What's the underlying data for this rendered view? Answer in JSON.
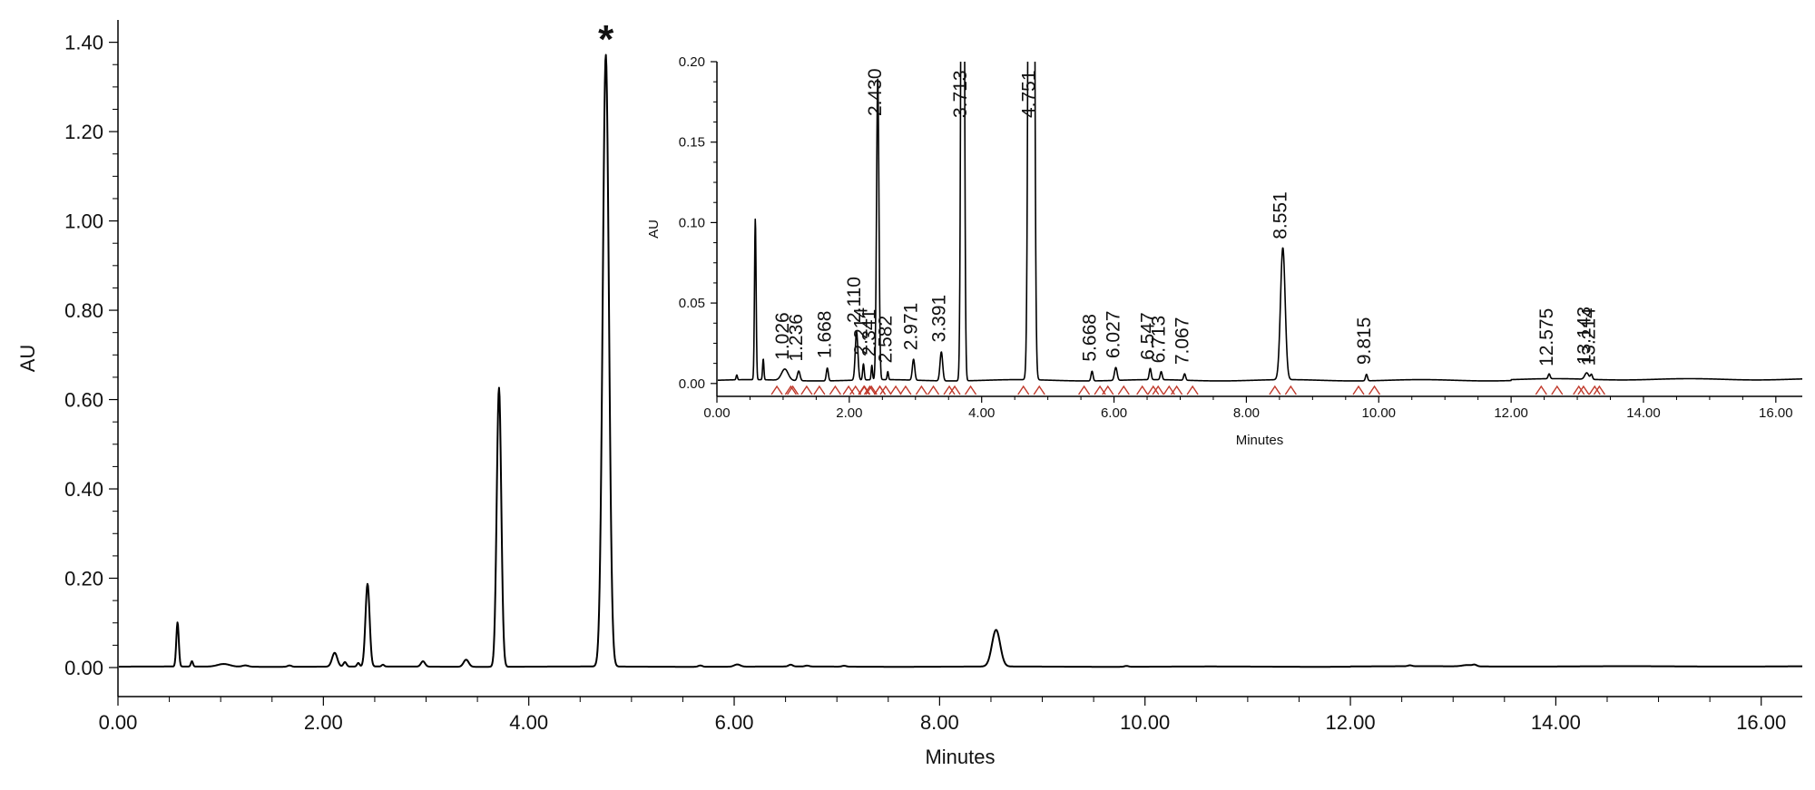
{
  "chart_data": [
    {
      "type": "line",
      "xlabel": "Minutes",
      "ylabel": "AU",
      "xlim": [
        0.0,
        16.4
      ],
      "ylim": [
        -0.065,
        1.45
      ],
      "x_ticks": [
        "0.00",
        "2.00",
        "4.00",
        "6.00",
        "8.00",
        "10.00",
        "12.00",
        "14.00",
        "16.00"
      ],
      "y_ticks": [
        "0.00",
        "0.20",
        "0.40",
        "0.60",
        "0.80",
        "1.00",
        "1.20",
        "1.40"
      ],
      "annotation": "*",
      "annotation_x": 4.751,
      "baseline": 0.002,
      "peaks": [
        {
          "t": 0.58,
          "h": 0.099,
          "w": 0.012
        },
        {
          "t": 0.72,
          "h": 0.012,
          "w": 0.01
        },
        {
          "t": 1.03,
          "h": 0.006,
          "w": 0.06
        },
        {
          "t": 1.24,
          "h": 0.003,
          "w": 0.03
        },
        {
          "t": 1.67,
          "h": 0.003,
          "w": 0.02
        },
        {
          "t": 2.11,
          "h": 0.031,
          "w": 0.025
        },
        {
          "t": 2.21,
          "h": 0.01,
          "w": 0.015
        },
        {
          "t": 2.34,
          "h": 0.008,
          "w": 0.012
        },
        {
          "t": 2.43,
          "h": 0.185,
          "w": 0.02
        },
        {
          "t": 2.58,
          "h": 0.004,
          "w": 0.012
        },
        {
          "t": 2.97,
          "h": 0.012,
          "w": 0.02
        },
        {
          "t": 3.39,
          "h": 0.016,
          "w": 0.025
        },
        {
          "t": 3.71,
          "h": 0.625,
          "w": 0.022
        },
        {
          "t": 4.75,
          "h": 1.37,
          "w": 0.03
        },
        {
          "t": 5.67,
          "h": 0.003,
          "w": 0.02
        },
        {
          "t": 6.03,
          "h": 0.005,
          "w": 0.03
        },
        {
          "t": 6.55,
          "h": 0.004,
          "w": 0.02
        },
        {
          "t": 6.71,
          "h": 0.002,
          "w": 0.02
        },
        {
          "t": 7.07,
          "h": 0.002,
          "w": 0.02
        },
        {
          "t": 8.55,
          "h": 0.082,
          "w": 0.04
        },
        {
          "t": 9.82,
          "h": 0.002,
          "w": 0.02
        },
        {
          "t": 12.58,
          "h": 0.002,
          "w": 0.02
        },
        {
          "t": 13.14,
          "h": 0.003,
          "w": 0.05
        },
        {
          "t": 13.21,
          "h": 0.003,
          "w": 0.02
        }
      ]
    },
    {
      "type": "line",
      "xlabel": "Minutes",
      "ylabel": "AU",
      "xlim": [
        0.0,
        16.4
      ],
      "ylim": [
        -0.008,
        0.2
      ],
      "x_ticks": [
        "0.00",
        "2.00",
        "4.00",
        "6.00",
        "8.00",
        "10.00",
        "12.00",
        "14.00",
        "16.00"
      ],
      "y_ticks": [
        "0.00",
        "0.05",
        "0.10",
        "0.15",
        "0.20"
      ],
      "baseline": 0.002,
      "peak_labels": [
        {
          "label": "1.026",
          "t": 1.026
        },
        {
          "label": "1.236",
          "t": 1.236
        },
        {
          "label": "1.668",
          "t": 1.668
        },
        {
          "label": "2.110",
          "t": 2.11
        },
        {
          "label": "2.214",
          "t": 2.214
        },
        {
          "label": "2.341",
          "t": 2.341
        },
        {
          "label": "2.430",
          "t": 2.43
        },
        {
          "label": "2.582",
          "t": 2.582
        },
        {
          "label": "2.971",
          "t": 2.971
        },
        {
          "label": "3.391",
          "t": 3.391
        },
        {
          "label": "3.713",
          "t": 3.713
        },
        {
          "label": "4.751",
          "t": 4.751
        },
        {
          "label": "5.668",
          "t": 5.668
        },
        {
          "label": "6.027",
          "t": 6.027
        },
        {
          "label": "6.547",
          "t": 6.547
        },
        {
          "label": "6.713",
          "t": 6.713
        },
        {
          "label": "7.067",
          "t": 7.067
        },
        {
          "label": "8.551",
          "t": 8.551
        },
        {
          "label": "9.815",
          "t": 9.815
        },
        {
          "label": "12.575",
          "t": 12.575
        },
        {
          "label": "13.143",
          "t": 13.143
        },
        {
          "label": "13.214",
          "t": 13.214
        }
      ],
      "peaks": [
        {
          "t": 0.3,
          "h": 0.003,
          "w": 0.01
        },
        {
          "t": 0.58,
          "h": 0.1,
          "w": 0.012
        },
        {
          "t": 0.7,
          "h": 0.013,
          "w": 0.01
        },
        {
          "t": 1.026,
          "h": 0.007,
          "w": 0.05
        },
        {
          "t": 1.236,
          "h": 0.006,
          "w": 0.02
        },
        {
          "t": 1.668,
          "h": 0.008,
          "w": 0.015
        },
        {
          "t": 2.11,
          "h": 0.03,
          "w": 0.02
        },
        {
          "t": 2.214,
          "h": 0.01,
          "w": 0.012
        },
        {
          "t": 2.341,
          "h": 0.009,
          "w": 0.01
        },
        {
          "t": 2.43,
          "h": 0.187,
          "w": 0.018
        },
        {
          "t": 2.582,
          "h": 0.005,
          "w": 0.01
        },
        {
          "t": 2.971,
          "h": 0.013,
          "w": 0.018
        },
        {
          "t": 3.391,
          "h": 0.018,
          "w": 0.02
        },
        {
          "t": 3.713,
          "h": 0.625,
          "w": 0.02
        },
        {
          "t": 4.751,
          "h": 1.37,
          "w": 0.028
        },
        {
          "t": 5.668,
          "h": 0.006,
          "w": 0.015
        },
        {
          "t": 6.027,
          "h": 0.008,
          "w": 0.02
        },
        {
          "t": 6.547,
          "h": 0.007,
          "w": 0.015
        },
        {
          "t": 6.713,
          "h": 0.005,
          "w": 0.015
        },
        {
          "t": 7.067,
          "h": 0.004,
          "w": 0.015
        },
        {
          "t": 8.551,
          "h": 0.082,
          "w": 0.035
        },
        {
          "t": 9.815,
          "h": 0.004,
          "w": 0.015
        },
        {
          "t": 12.575,
          "h": 0.003,
          "w": 0.015
        },
        {
          "t": 13.143,
          "h": 0.004,
          "w": 0.03
        },
        {
          "t": 13.214,
          "h": 0.003,
          "w": 0.015
        }
      ]
    }
  ]
}
